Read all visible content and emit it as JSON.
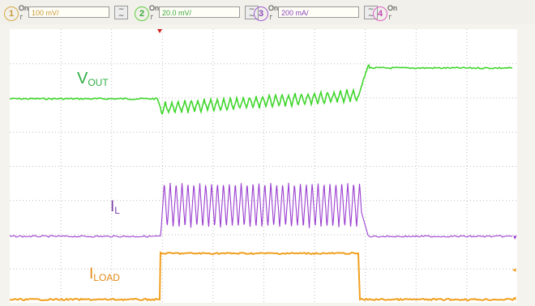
{
  "channels": [
    {
      "num": "1",
      "on": "On",
      "scale": "100 mV/",
      "color": "#c89a3b",
      "text_color": "#c89a3b",
      "btn": "~\n~"
    },
    {
      "num": "2",
      "on": "On",
      "scale": "20.0 mV/",
      "color": "#5ecf3f",
      "text_color": "#3aa63a",
      "btn": "~\n~"
    },
    {
      "num": "3",
      "on": "On",
      "scale": "200 mA/",
      "color": "#a25ed4",
      "text_color": "#8b48bd",
      "btn": "~\n~"
    },
    {
      "num": "4",
      "on": "On",
      "scale": "",
      "color": "#e060c8",
      "text_color": "#c548b5",
      "btn": ""
    }
  ],
  "traces": {
    "vout": {
      "main": "V",
      "sub": "OUT",
      "color": "#3fd62b"
    },
    "il": {
      "main": "I",
      "sub": "L",
      "color": "#9b3fd0"
    },
    "iload": {
      "main": "I",
      "sub": "LOAD",
      "color": "#f0a020"
    }
  },
  "colors": {
    "screen_bg": "#ffffff",
    "grid": "#cccccc",
    "trigger": "#d12020"
  }
}
